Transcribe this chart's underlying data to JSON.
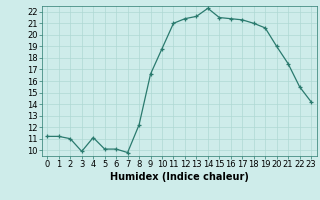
{
  "x": [
    0,
    1,
    2,
    3,
    4,
    5,
    6,
    7,
    8,
    9,
    10,
    11,
    12,
    13,
    14,
    15,
    16,
    17,
    18,
    19,
    20,
    21,
    22,
    23
  ],
  "y": [
    11.2,
    11.2,
    11.0,
    9.9,
    11.1,
    10.1,
    10.1,
    9.8,
    12.2,
    16.6,
    18.8,
    21.0,
    21.4,
    21.6,
    22.3,
    21.5,
    21.4,
    21.3,
    21.0,
    20.6,
    19.0,
    17.5,
    15.5,
    14.2
  ],
  "line_color": "#2a7a6e",
  "marker": "+",
  "marker_size": 3,
  "linewidth": 0.9,
  "xlabel": "Humidex (Indice chaleur)",
  "xlim": [
    -0.5,
    23.5
  ],
  "ylim": [
    9.5,
    22.5
  ],
  "yticks": [
    10,
    11,
    12,
    13,
    14,
    15,
    16,
    17,
    18,
    19,
    20,
    21,
    22
  ],
  "xticks": [
    0,
    1,
    2,
    3,
    4,
    5,
    6,
    7,
    8,
    9,
    10,
    11,
    12,
    13,
    14,
    15,
    16,
    17,
    18,
    19,
    20,
    21,
    22,
    23
  ],
  "bg_color": "#ceecea",
  "grid_color": "#afd8d4",
  "xlabel_fontsize": 7,
  "tick_fontsize": 6,
  "fig_width": 3.2,
  "fig_height": 2.0,
  "dpi": 100
}
